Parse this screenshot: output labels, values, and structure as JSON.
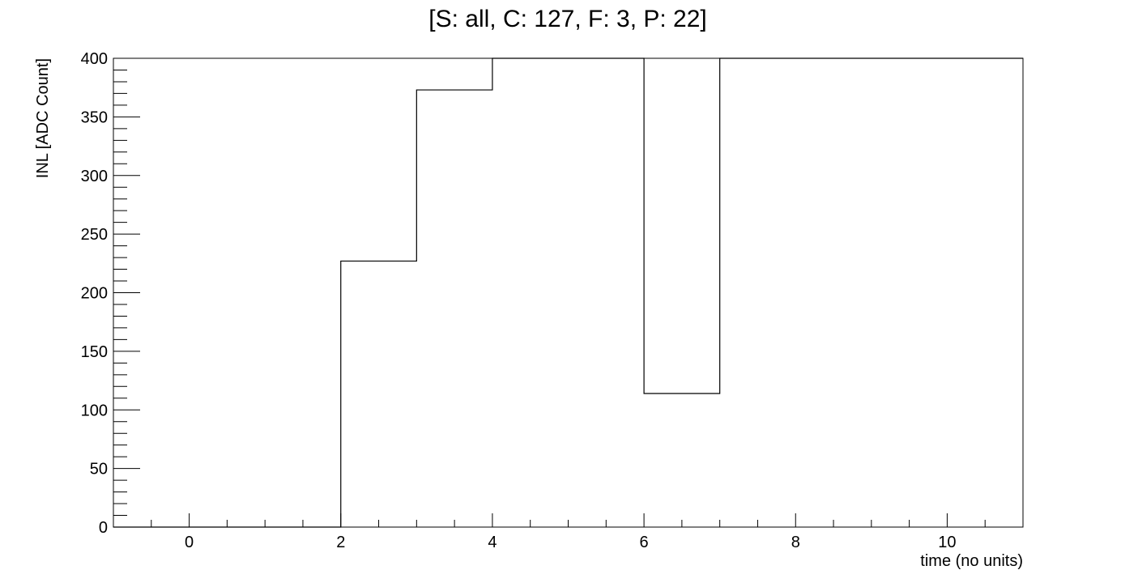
{
  "chart_data": {
    "type": "line",
    "title": "[S: all, C: 127, F: 3, P: 22]",
    "xlabel": "time (no units)",
    "ylabel": "INL [ADC Count]",
    "xlim": [
      -1,
      11
    ],
    "ylim": [
      0,
      400
    ],
    "x_ticks": [
      0,
      2,
      4,
      6,
      8,
      10
    ],
    "y_ticks": [
      0,
      50,
      100,
      150,
      200,
      250,
      300,
      350,
      400
    ],
    "grid": false,
    "legend": "none",
    "series": [
      {
        "bin_edges": [
          -1,
          0,
          1,
          2,
          3,
          4,
          5,
          6,
          7,
          8,
          9,
          10,
          11
        ],
        "values": [
          0,
          0,
          0,
          227,
          373,
          400,
          400,
          114,
          400,
          400,
          400,
          400
        ]
      }
    ]
  }
}
